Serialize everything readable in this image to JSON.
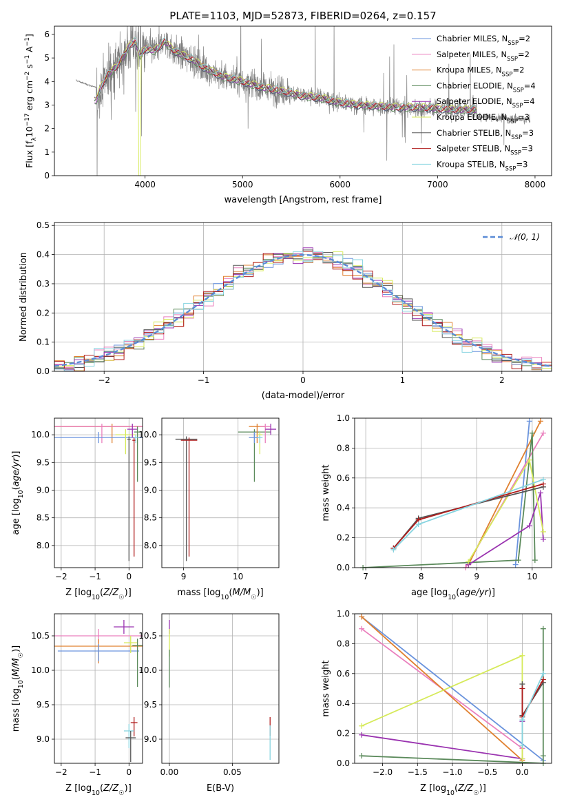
{
  "figure": {
    "title": "PLATE=1103, MJD=52873, FIBERID=0264, z=0.157"
  },
  "model_colors": {
    "Chabrier MILES": "#6a93dd",
    "Salpeter MILES": "#ea7fbd",
    "Kroupa MILES": "#e0802f",
    "Chabrier ELODIE": "#5b8a5b",
    "Salpeter ELODIE": "#9a33b0",
    "Kroupa ELODIE": "#d6ea5a",
    "Chabrier STELIB": "#555555",
    "Salpeter STELIB": "#b01c1c",
    "Kroupa STELIB": "#86d4e0",
    "data": "#808080",
    "normal": "#5a8bd6"
  },
  "chart_data": [
    {
      "id": "spectrum",
      "type": "line",
      "xlabel": "wavelength [Angstrom, rest frame]",
      "ylabel": "Flux [f_λ 10^-17 erg cm^-2 s^-1 A^-1]",
      "xlim": [
        3070,
        8170
      ],
      "ylim": [
        0,
        6.35
      ],
      "xticks": [
        4000,
        5000,
        6000,
        7000,
        8000
      ],
      "yticks": [
        0,
        1,
        2,
        3,
        4,
        5,
        6
      ],
      "grid": false,
      "legend_position": "right",
      "legend": [
        {
          "model": "Chabrier MILES",
          "label": "Chabrier MILES, N",
          "nssp": "2"
        },
        {
          "model": "Salpeter MILES",
          "label": "Salpeter MILES, N",
          "nssp": "2"
        },
        {
          "model": "Kroupa MILES",
          "label": "Kroupa MILES, N",
          "nssp": "2"
        },
        {
          "model": "Chabrier ELODIE",
          "label": "Chabrier ELODIE, N",
          "nssp": "4"
        },
        {
          "model": "Salpeter ELODIE",
          "label": "Salpeter ELODIE, N",
          "nssp": "4"
        },
        {
          "model": "Kroupa ELODIE",
          "label": "Kroupa ELODIE, N",
          "nssp": "3"
        },
        {
          "model": "Chabrier STELIB",
          "label": "Chabrier STELIB, N",
          "nssp": "3"
        },
        {
          "model": "Salpeter STELIB",
          "label": "Salpeter STELIB, N",
          "nssp": "3"
        },
        {
          "model": "Kroupa STELIB",
          "label": "Kroupa STELIB, N",
          "nssp": "3"
        }
      ],
      "data_range": [
        3290,
        7950
      ],
      "model_curve": {
        "x": [
          3500,
          3560,
          3620,
          3700,
          3800,
          3850,
          3900,
          3950,
          4000,
          4100,
          4200,
          4300,
          4400,
          4500,
          4600,
          4700,
          4800,
          4900,
          5000,
          5200,
          5400,
          5600,
          5800,
          6000,
          6200,
          6400,
          6600,
          6800,
          7000,
          7200,
          7400
        ],
        "y": [
          3.2,
          3.9,
          4.3,
          4.6,
          5.2,
          5.6,
          5.7,
          5.1,
          5.4,
          5.3,
          5.7,
          5.3,
          5.1,
          4.9,
          4.6,
          4.4,
          4.2,
          4.1,
          4.0,
          3.75,
          3.6,
          3.4,
          3.3,
          3.1,
          3.0,
          2.95,
          2.9,
          2.9,
          2.85,
          2.8,
          2.8
        ]
      }
    },
    {
      "id": "residuals",
      "type": "histogram",
      "xlabel": "(data-model)/error",
      "ylabel": "Normed distribution",
      "xlim": [
        -2.5,
        2.5
      ],
      "ylim": [
        0,
        0.51
      ],
      "xticks": [
        -2,
        -1,
        0,
        1,
        2
      ],
      "yticks": [
        0.0,
        0.1,
        0.2,
        0.3,
        0.4,
        0.5
      ],
      "grid": true,
      "legend_position": "top-right",
      "legend": [
        {
          "label": "𝒩(0, 1)"
        }
      ],
      "bin_width": 0.1
    },
    {
      "id": "age_vs_Z",
      "type": "errorbar",
      "xlabel": "Z [log10(Z/Z☉)]",
      "ylabel": "age [log10(age/yr)]",
      "xlim": [
        -2.2,
        0.4
      ],
      "ylim": [
        7.6,
        10.3
      ],
      "xticks": [
        -2,
        -1,
        0
      ],
      "yticks": [
        8.0,
        8.5,
        9.0,
        9.5,
        10.0
      ],
      "grid": true,
      "points": [
        {
          "model": "Kroupa MILES",
          "x": -0.5,
          "y": 10.15,
          "xerr": 1.8,
          "yerr": [
            0.3,
            0.05
          ]
        },
        {
          "model": "Salpeter MILES",
          "x": -0.8,
          "y": 10.15,
          "xerr": 1.4,
          "yerr": [
            0.3,
            0.05
          ]
        },
        {
          "model": "Chabrier MILES",
          "x": -0.9,
          "y": 9.95,
          "xerr": 1.3,
          "yerr": [
            0.1,
            0.1
          ]
        },
        {
          "model": "Kroupa ELODIE",
          "x": -0.1,
          "y": 10.0,
          "xerr": 0.3,
          "yerr": [
            0.35,
            0.1
          ]
        },
        {
          "model": "Salpeter ELODIE",
          "x": 0.1,
          "y": 10.1,
          "xerr": 0.15,
          "yerr": [
            0.15,
            0.1
          ]
        },
        {
          "model": "Chabrier ELODIE",
          "x": 0.25,
          "y": 10.05,
          "xerr": 0.1,
          "yerr": [
            0.9,
            0.1
          ]
        },
        {
          "model": "Chabrier STELIB",
          "x": 0.0,
          "y": 9.92,
          "xerr": 0.05,
          "yerr": [
            2.2,
            0.05
          ]
        },
        {
          "model": "Salpeter STELIB",
          "x": 0.15,
          "y": 9.9,
          "xerr": 0.05,
          "yerr": [
            2.1,
            0.05
          ]
        },
        {
          "model": "Kroupa STELIB",
          "x": 0.2,
          "y": 9.95,
          "xerr": 0.05,
          "yerr": [
            0.1,
            0.05
          ]
        }
      ]
    },
    {
      "id": "age_vs_mass",
      "type": "errorbar",
      "xlabel": "mass [log10(M/M☉)]",
      "ylabel": "",
      "xlim": [
        8.6,
        10.75
      ],
      "ylim": [
        7.6,
        10.3
      ],
      "xticks": [
        9,
        10
      ],
      "yticks": [
        8.0,
        8.5,
        9.0,
        9.5,
        10.0
      ],
      "grid": true,
      "points": [
        {
          "model": "Chabrier STELIB",
          "x": 9.05,
          "y": 9.92,
          "xerr": 0.2,
          "yerr": [
            2.2,
            0.05
          ]
        },
        {
          "model": "Salpeter STELIB",
          "x": 9.1,
          "y": 9.9,
          "xerr": 0.15,
          "yerr": [
            2.1,
            0.05
          ]
        },
        {
          "model": "Chabrier ELODIE",
          "x": 10.3,
          "y": 10.05,
          "xerr": 0.3,
          "yerr": [
            0.9,
            0.05
          ]
        },
        {
          "model": "Kroupa MILES",
          "x": 10.35,
          "y": 10.15,
          "xerr": 0.15,
          "yerr": [
            0.3,
            0.05
          ]
        },
        {
          "model": "Salpeter MILES",
          "x": 10.5,
          "y": 10.15,
          "xerr": 0.1,
          "yerr": [
            0.3,
            0.05
          ]
        },
        {
          "model": "Chabrier MILES",
          "x": 10.3,
          "y": 9.95,
          "xerr": 0.1,
          "yerr": [
            0.1,
            0.1
          ]
        },
        {
          "model": "Salpeter ELODIE",
          "x": 10.6,
          "y": 10.1,
          "xerr": 0.1,
          "yerr": [
            0.1,
            0.1
          ]
        },
        {
          "model": "Kroupa ELODIE",
          "x": 10.4,
          "y": 10.0,
          "xerr": 0.05,
          "yerr": [
            0.35,
            0.05
          ]
        },
        {
          "model": "Kroupa STELIB",
          "x": 10.4,
          "y": 9.95,
          "xerr": 0.05,
          "yerr": [
            0.1,
            0.05
          ]
        }
      ]
    },
    {
      "id": "weight_vs_age",
      "type": "line",
      "xlabel": "age [log10(age/yr)]",
      "ylabel": "mass weight",
      "xlim": [
        6.8,
        10.35
      ],
      "ylim": [
        0,
        1.0
      ],
      "xticks": [
        7,
        8,
        9,
        10
      ],
      "yticks": [
        0.0,
        0.2,
        0.4,
        0.6,
        0.8,
        1.0
      ],
      "grid": true,
      "series": [
        {
          "model": "Chabrier MILES",
          "x": [
            9.7,
            9.95
          ],
          "y": [
            0.02,
            0.98
          ]
        },
        {
          "model": "Salpeter MILES",
          "x": [
            8.8,
            10.2
          ],
          "y": [
            0.0,
            0.9
          ]
        },
        {
          "model": "Kroupa MILES",
          "x": [
            8.85,
            10.15
          ],
          "y": [
            0.02,
            0.98
          ]
        },
        {
          "model": "Chabrier ELODIE",
          "x": [
            6.95,
            9.75,
            10.0,
            10.05
          ],
          "y": [
            0.0,
            0.05,
            0.9,
            0.05
          ]
        },
        {
          "model": "Salpeter ELODIE",
          "x": [
            8.85,
            9.95,
            10.15,
            10.2
          ],
          "y": [
            0.02,
            0.28,
            0.5,
            0.19
          ]
        },
        {
          "model": "Kroupa ELODIE",
          "x": [
            8.85,
            9.95,
            10.2
          ],
          "y": [
            0.04,
            0.72,
            0.24
          ]
        },
        {
          "model": "Chabrier STELIB",
          "x": [
            7.5,
            7.95,
            10.2
          ],
          "y": [
            0.13,
            0.33,
            0.54
          ]
        },
        {
          "model": "Salpeter STELIB",
          "x": [
            7.5,
            7.95,
            10.2
          ],
          "y": [
            0.13,
            0.32,
            0.56
          ]
        },
        {
          "model": "Kroupa STELIB",
          "x": [
            7.5,
            7.95,
            10.2
          ],
          "y": [
            0.12,
            0.29,
            0.59
          ]
        }
      ]
    },
    {
      "id": "mass_vs_Z",
      "type": "errorbar",
      "xlabel": "Z [log10(Z/Z☉)]",
      "ylabel": "mass [log10(M/M☉)]",
      "xlim": [
        -2.2,
        0.4
      ],
      "ylim": [
        8.65,
        10.82
      ],
      "xticks": [
        -2,
        -1,
        0
      ],
      "yticks": [
        9.0,
        9.5,
        10.0,
        10.5
      ],
      "grid": true,
      "points": [
        {
          "model": "Salpeter MILES",
          "x": -0.9,
          "y": 10.5,
          "xerr": 1.3,
          "yerr": [
            0.1,
            0.1
          ]
        },
        {
          "model": "Kroupa MILES",
          "x": -0.9,
          "y": 10.35,
          "xerr": 1.3,
          "yerr": [
            0.25,
            0.1
          ]
        },
        {
          "model": "Chabrier MILES",
          "x": -0.9,
          "y": 10.28,
          "xerr": 1.2,
          "yerr": [
            0.15,
            0.1
          ]
        },
        {
          "model": "Salpeter ELODIE",
          "x": -0.15,
          "y": 10.63,
          "xerr": 0.3,
          "yerr": [
            0.1,
            0.1
          ]
        },
        {
          "model": "Kroupa ELODIE",
          "x": 0.05,
          "y": 10.4,
          "xerr": 0.2,
          "yerr": [
            0.15,
            0.1
          ]
        },
        {
          "model": "Chabrier ELODIE",
          "x": 0.25,
          "y": 10.36,
          "xerr": 0.15,
          "yerr": [
            0.6,
            0.1
          ]
        },
        {
          "model": "Salpeter STELIB",
          "x": 0.15,
          "y": 9.24,
          "xerr": 0.1,
          "yerr": [
            0.2,
            0.08
          ]
        },
        {
          "model": "Kroupa STELIB",
          "x": 0.0,
          "y": 9.12,
          "xerr": 0.15,
          "yerr": [
            0.25,
            0.1
          ]
        },
        {
          "model": "Chabrier STELIB",
          "x": 0.05,
          "y": 9.02,
          "xerr": 0.15,
          "yerr": [
            0.35,
            0.1
          ]
        }
      ]
    },
    {
      "id": "mass_vs_ebv",
      "type": "errorbar",
      "xlabel": "E(B-V)",
      "ylabel": "",
      "xlim": [
        -0.006,
        0.087
      ],
      "ylim": [
        8.65,
        10.82
      ],
      "xticks": [
        0.0,
        0.05
      ],
      "xtick_labels": [
        "0.00",
        "0.05"
      ],
      "yticks": [
        9.0,
        9.5,
        10.0,
        10.5
      ],
      "grid": true,
      "points": [
        {
          "model": "Salpeter ELODIE",
          "x": 0.0,
          "y": 10.63,
          "xerr": 0.0,
          "yerr": [
            0.1,
            0.1
          ]
        },
        {
          "model": "Kroupa ELODIE",
          "x": 0.0,
          "y": 10.4,
          "xerr": 0.0,
          "yerr": [
            0.2,
            0.2
          ]
        },
        {
          "model": "Chabrier ELODIE",
          "x": 0.0,
          "y": 10.1,
          "xerr": 0.0,
          "yerr": [
            0.35,
            0.2
          ]
        },
        {
          "model": "Salpeter STELIB",
          "x": 0.08,
          "y": 9.2,
          "xerr": 0.0,
          "yerr": [
            0.15,
            0.12
          ]
        },
        {
          "model": "Kroupa STELIB",
          "x": 0.08,
          "y": 9.0,
          "xerr": 0.0,
          "yerr": [
            0.3,
            0.2
          ]
        }
      ]
    },
    {
      "id": "weight_vs_Z",
      "type": "line",
      "xlabel": "Z [log10(Z/Z☉)]",
      "ylabel": "mass weight",
      "xlim": [
        -2.4,
        0.42
      ],
      "ylim": [
        0,
        1.0
      ],
      "xticks": [
        -2.0,
        -1.5,
        -1.0,
        -0.5,
        0.0
      ],
      "xtick_labels": [
        "−2.0",
        "−1.5",
        "−1.0",
        "−0.5",
        "0.0"
      ],
      "yticks": [
        0.0,
        0.2,
        0.4,
        0.6,
        0.8,
        1.0
      ],
      "grid": true,
      "series": [
        {
          "model": "Chabrier MILES",
          "x": [
            -2.3,
            0.3
          ],
          "y": [
            0.98,
            0.02
          ]
        },
        {
          "model": "Salpeter MILES",
          "x": [
            -2.3,
            0.0
          ],
          "y": [
            0.9,
            0.1
          ]
        },
        {
          "model": "Kroupa MILES",
          "x": [
            -2.3,
            0.0
          ],
          "y": [
            0.98,
            0.02
          ]
        },
        {
          "model": "Chabrier ELODIE",
          "x": [
            -2.3,
            0.3,
            0.3,
            0.3
          ],
          "y": [
            0.05,
            0.0,
            0.05,
            0.9
          ]
        },
        {
          "model": "Salpeter ELODIE",
          "x": [
            -2.3,
            0.0,
            0.0
          ],
          "y": [
            0.19,
            0.03,
            0.28
          ]
        },
        {
          "model": "Kroupa ELODIE",
          "x": [
            -2.3,
            0.0,
            0.0
          ],
          "y": [
            0.25,
            0.72,
            0.03
          ]
        },
        {
          "model": "Chabrier STELIB",
          "x": [
            0.0,
            0.0,
            0.3
          ],
          "y": [
            0.53,
            0.32,
            0.54
          ]
        },
        {
          "model": "Salpeter STELIB",
          "x": [
            0.0,
            0.0,
            0.3
          ],
          "y": [
            0.5,
            0.31,
            0.56
          ]
        },
        {
          "model": "Kroupa STELIB",
          "x": [
            0.0,
            0.0,
            0.3
          ],
          "y": [
            0.12,
            0.29,
            0.6
          ]
        }
      ]
    }
  ]
}
